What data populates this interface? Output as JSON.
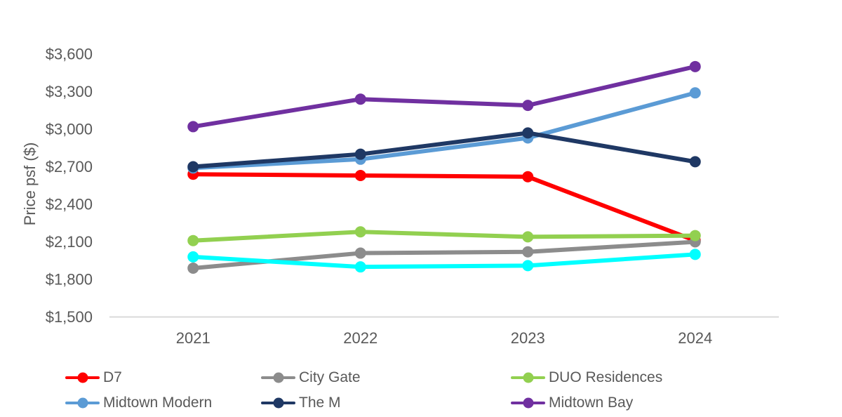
{
  "chart_data": {
    "type": "line",
    "title": "",
    "ylabel": "Price psf ($)",
    "categories": [
      "2021",
      "2022",
      "2023",
      "2024"
    ],
    "ylim": [
      1500,
      3600
    ],
    "ytick_step": 300,
    "ytick_labels": [
      "$1,500",
      "$1,800",
      "$2,100",
      "$2,400",
      "$2,700",
      "$3,000",
      "$3,300",
      "$3,600"
    ],
    "grid": false,
    "legend_position": "bottom",
    "axis_text_color": "#595959",
    "axis_line_color": "#D9D9D9",
    "series": [
      {
        "name": "D7",
        "color": "#FF0000",
        "values": [
          2640,
          2630,
          2620,
          2110
        ],
        "in_legend": true
      },
      {
        "name": "City Gate",
        "color": "#8C8C8C",
        "values": [
          1890,
          2010,
          2020,
          2100
        ],
        "in_legend": true
      },
      {
        "name": "DUO Residences",
        "color": "#92D050",
        "values": [
          2110,
          2180,
          2140,
          2150
        ],
        "in_legend": true
      },
      {
        "name": "Midtown Modern",
        "color": "#5B9BD5",
        "values": [
          2690,
          2760,
          2930,
          3290
        ],
        "in_legend": true
      },
      {
        "name": "The M",
        "color": "#1F3864",
        "values": [
          2700,
          2800,
          2970,
          2740
        ],
        "in_legend": true
      },
      {
        "name": "Midtown Bay",
        "color": "#7030A0",
        "values": [
          3020,
          3240,
          3190,
          3500
        ],
        "in_legend": true
      },
      {
        "name": "",
        "color": "#00FFFF",
        "values": [
          1980,
          1900,
          1910,
          2000
        ],
        "in_legend": false
      }
    ]
  }
}
